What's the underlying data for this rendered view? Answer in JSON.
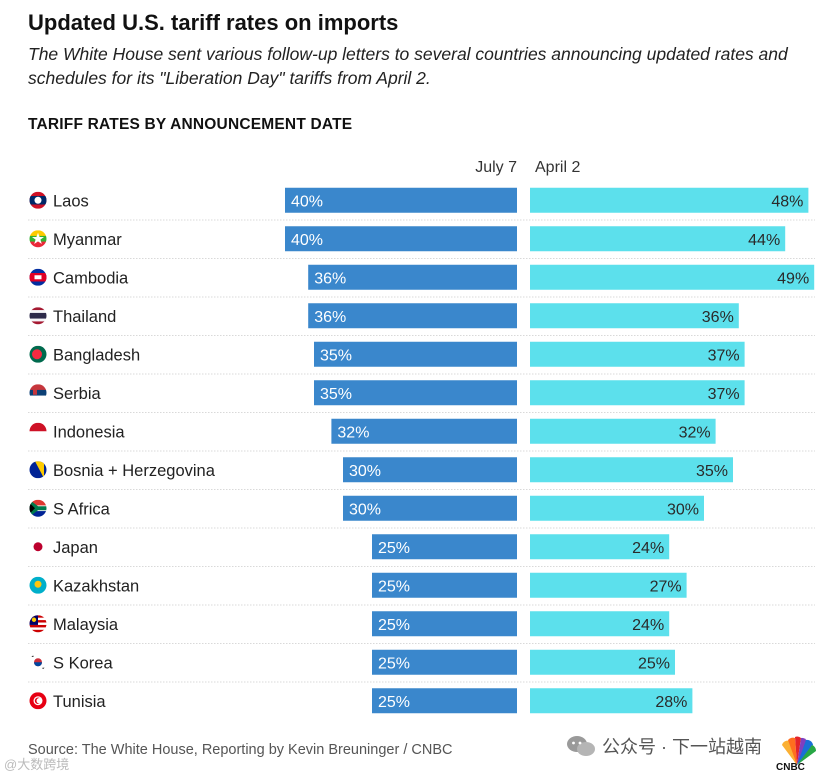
{
  "header": {
    "title": "Updated U.S. tariff rates on imports",
    "subtitle": "The White House sent various follow-up letters to several countries announcing updated rates and schedules for its \"Liberation Day\" tariffs from April 2.",
    "section_title": "TARIFF RATES BY ANNOUNCEMENT DATE"
  },
  "chart_data": {
    "type": "bar",
    "layout": "diverging-horizontal",
    "categories": [
      "Laos",
      "Myanmar",
      "Cambodia",
      "Thailand",
      "Bangladesh",
      "Serbia",
      "Indonesia",
      "Bosnia + Herzegovina",
      "S Africa",
      "Japan",
      "Kazakhstan",
      "Malaysia",
      "S Korea",
      "Tunisia"
    ],
    "series": [
      {
        "name": "July 7",
        "values": [
          40,
          40,
          36,
          36,
          35,
          35,
          32,
          30,
          30,
          25,
          25,
          25,
          25,
          25
        ],
        "color": "#3a87cc",
        "direction": "left"
      },
      {
        "name": "April 2",
        "values": [
          48,
          44,
          49,
          36,
          37,
          37,
          32,
          35,
          30,
          24,
          27,
          24,
          25,
          28
        ],
        "color": "#5ce0ec",
        "direction": "right"
      }
    ],
    "value_suffix": "%",
    "title": "TARIFF RATES BY ANNOUNCEMENT DATE",
    "xlim": [
      0,
      50
    ]
  },
  "flags": [
    "laos-flag-icon",
    "myanmar-flag-icon",
    "cambodia-flag-icon",
    "thailand-flag-icon",
    "bangladesh-flag-icon",
    "serbia-flag-icon",
    "indonesia-flag-icon",
    "bosnia-flag-icon",
    "south-africa-flag-icon",
    "japan-flag-icon",
    "kazakhstan-flag-icon",
    "malaysia-flag-icon",
    "south-korea-flag-icon",
    "tunisia-flag-icon"
  ],
  "footer": {
    "source": "Source: The White House, Reporting by Kevin Breuninger / CNBC",
    "watermark": "公众号 · 下一站越南",
    "brand": "CNBC",
    "corner_watermark": "@大数跨境"
  }
}
